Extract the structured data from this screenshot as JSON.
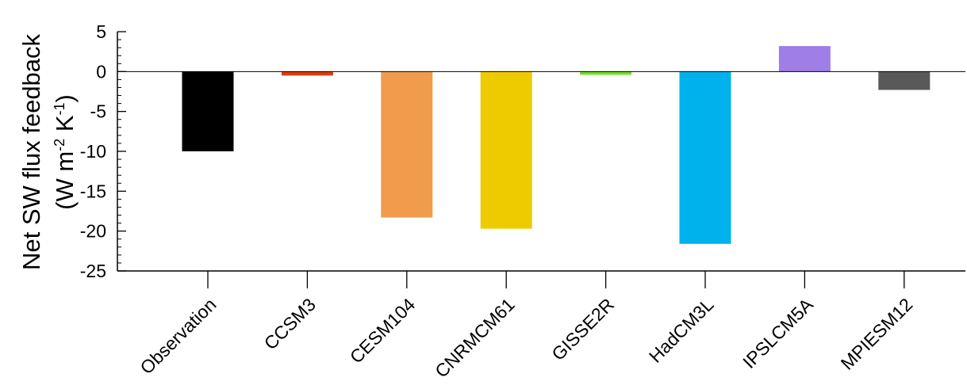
{
  "chart_data": {
    "type": "bar",
    "categories": [
      "Observation",
      "CCSM3",
      "CESM104",
      "CNRMCM61",
      "GISSE2R",
      "HadCM3L",
      "IPSLCM5A",
      "MPIESM12"
    ],
    "values": [
      -10.0,
      -0.5,
      -18.3,
      -19.7,
      -0.4,
      -21.6,
      3.2,
      -2.3
    ],
    "colors": [
      "#000000",
      "#dd3a10",
      "#f09c4c",
      "#eecb00",
      "#6ee024",
      "#00b2ec",
      "#a07ee8",
      "#595959"
    ],
    "ylabel_line1": "Net SW flux feedback",
    "ylabel_line2_parts": [
      "(W m",
      "-2",
      " K",
      "-1",
      ")"
    ],
    "ylim": [
      -25,
      5
    ],
    "yticks": [
      5,
      0,
      -5,
      -10,
      -15,
      -20,
      -25
    ],
    "ytick_labels": [
      "5",
      "0",
      "-5",
      "-10",
      "-15",
      "-20",
      "-25"
    ],
    "minor_step": 1,
    "zero_line": true,
    "grid": false,
    "legend": "none"
  }
}
